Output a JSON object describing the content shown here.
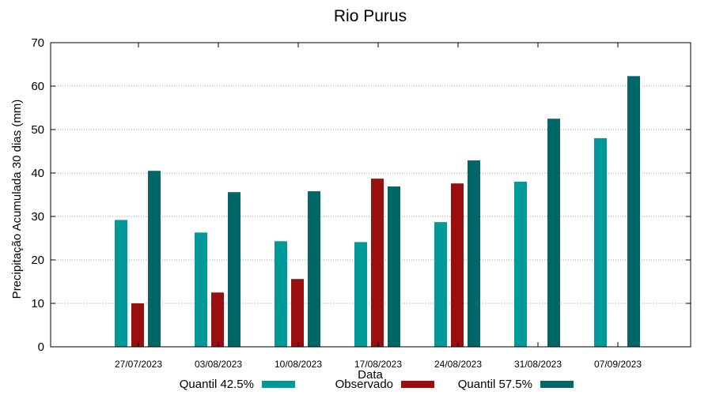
{
  "chart_data": {
    "type": "bar",
    "title": "Rio Purus",
    "xlabel": "Data",
    "ylabel": "Precipitação Acumulada 30 dias (mm)",
    "ylim": [
      0,
      70
    ],
    "yticks": [
      "0",
      "10",
      "20",
      "30",
      "40",
      "50",
      "60",
      "70"
    ],
    "grid": true,
    "legend_position": "bottom",
    "categories": [
      "27/07/2023",
      "03/08/2023",
      "10/08/2023",
      "17/08/2023",
      "24/08/2023",
      "31/08/2023",
      "07/09/2023"
    ],
    "series": [
      {
        "name": "Quantil 42.5%",
        "color": "#009999",
        "values": [
          29.2,
          26.3,
          24.3,
          24.1,
          28.7,
          38.0,
          48.0
        ]
      },
      {
        "name": "Observado",
        "color": "#990f0f",
        "values": [
          10.0,
          12.5,
          15.6,
          38.7,
          37.6,
          null,
          null
        ]
      },
      {
        "name": "Quantil 57.5%",
        "color": "#006666",
        "values": [
          40.5,
          35.6,
          35.8,
          36.9,
          42.9,
          52.5,
          62.3
        ]
      }
    ]
  }
}
